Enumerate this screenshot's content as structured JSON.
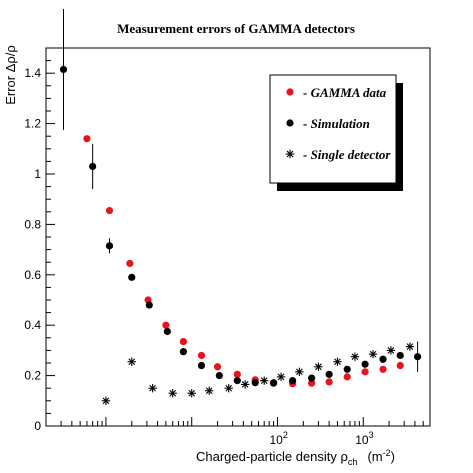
{
  "chart_data": {
    "type": "scatter",
    "title": "Measurement errors of GAMMA detectors",
    "ylabel": "Error Δρ/ρ",
    "xlabel": "Charged-particle density  ρ",
    "xlabel_sub": "ch",
    "xunit": "(m",
    "xunit_sup": "-2",
    "xunit_close": ")",
    "xscale": "log",
    "xlim": [
      0.2,
      6000
    ],
    "ylim": [
      0,
      1.5
    ],
    "x_major_ticks": [
      {
        "value": 100,
        "base": "10",
        "exp": "2"
      },
      {
        "value": 1000,
        "base": "10",
        "exp": "3"
      }
    ],
    "y_ticks": [
      {
        "value": 0,
        "label": "0"
      },
      {
        "value": 0.2,
        "label": "0.2"
      },
      {
        "value": 0.4,
        "label": "0.4"
      },
      {
        "value": 0.6,
        "label": "0.6"
      },
      {
        "value": 0.8,
        "label": "0.8"
      },
      {
        "value": 1.0,
        "label": "1"
      },
      {
        "value": 1.2,
        "label": "1.2"
      },
      {
        "value": 1.4,
        "label": "1.4"
      }
    ],
    "legend_position": "top-right",
    "series": [
      {
        "name": "- GAMMA data",
        "marker": "circle",
        "color": "#e8141b",
        "points": [
          {
            "x": 0.6,
            "y": 1.14
          },
          {
            "x": 1.1,
            "y": 0.855
          },
          {
            "x": 1.9,
            "y": 0.645
          },
          {
            "x": 3.1,
            "y": 0.5
          },
          {
            "x": 5.0,
            "y": 0.4
          },
          {
            "x": 8.0,
            "y": 0.335
          },
          {
            "x": 13,
            "y": 0.28
          },
          {
            "x": 20,
            "y": 0.235
          },
          {
            "x": 34,
            "y": 0.205
          },
          {
            "x": 55,
            "y": 0.183
          },
          {
            "x": 90,
            "y": 0.172
          },
          {
            "x": 150,
            "y": 0.168
          },
          {
            "x": 250,
            "y": 0.17
          },
          {
            "x": 400,
            "y": 0.175
          },
          {
            "x": 650,
            "y": 0.195
          },
          {
            "x": 1050,
            "y": 0.215
          },
          {
            "x": 1700,
            "y": 0.225
          },
          {
            "x": 2700,
            "y": 0.24
          }
        ]
      },
      {
        "name": "- Simulation",
        "marker": "circle",
        "color": "#000000",
        "points": [
          {
            "x": 0.32,
            "y": 1.415,
            "err": 0.24
          },
          {
            "x": 0.7,
            "y": 1.03,
            "err": 0.09
          },
          {
            "x": 1.1,
            "y": 0.715,
            "err": 0.03
          },
          {
            "x": 2.0,
            "y": 0.59
          },
          {
            "x": 3.2,
            "y": 0.48
          },
          {
            "x": 5.2,
            "y": 0.375
          },
          {
            "x": 8.0,
            "y": 0.295
          },
          {
            "x": 13,
            "y": 0.24
          },
          {
            "x": 21,
            "y": 0.2
          },
          {
            "x": 34,
            "y": 0.18
          },
          {
            "x": 55,
            "y": 0.172
          },
          {
            "x": 90,
            "y": 0.17
          },
          {
            "x": 150,
            "y": 0.18
          },
          {
            "x": 250,
            "y": 0.19
          },
          {
            "x": 400,
            "y": 0.205
          },
          {
            "x": 650,
            "y": 0.225
          },
          {
            "x": 1050,
            "y": 0.245
          },
          {
            "x": 1700,
            "y": 0.265
          },
          {
            "x": 2700,
            "y": 0.28
          },
          {
            "x": 4300,
            "y": 0.275,
            "err": 0.06
          }
        ]
      },
      {
        "name": "- Single detector",
        "marker": "star",
        "color": "#000000",
        "points": [
          {
            "x": 1.0,
            "y": 0.1
          },
          {
            "x": 2.0,
            "y": 0.255
          },
          {
            "x": 3.5,
            "y": 0.15
          },
          {
            "x": 6.0,
            "y": 0.13
          },
          {
            "x": 10,
            "y": 0.13
          },
          {
            "x": 16,
            "y": 0.14
          },
          {
            "x": 27,
            "y": 0.15
          },
          {
            "x": 42,
            "y": 0.165
          },
          {
            "x": 70,
            "y": 0.18
          },
          {
            "x": 110,
            "y": 0.195
          },
          {
            "x": 180,
            "y": 0.215
          },
          {
            "x": 300,
            "y": 0.235
          },
          {
            "x": 500,
            "y": 0.255
          },
          {
            "x": 800,
            "y": 0.275
          },
          {
            "x": 1300,
            "y": 0.285
          },
          {
            "x": 2100,
            "y": 0.3
          },
          {
            "x": 3500,
            "y": 0.315
          }
        ]
      }
    ]
  }
}
